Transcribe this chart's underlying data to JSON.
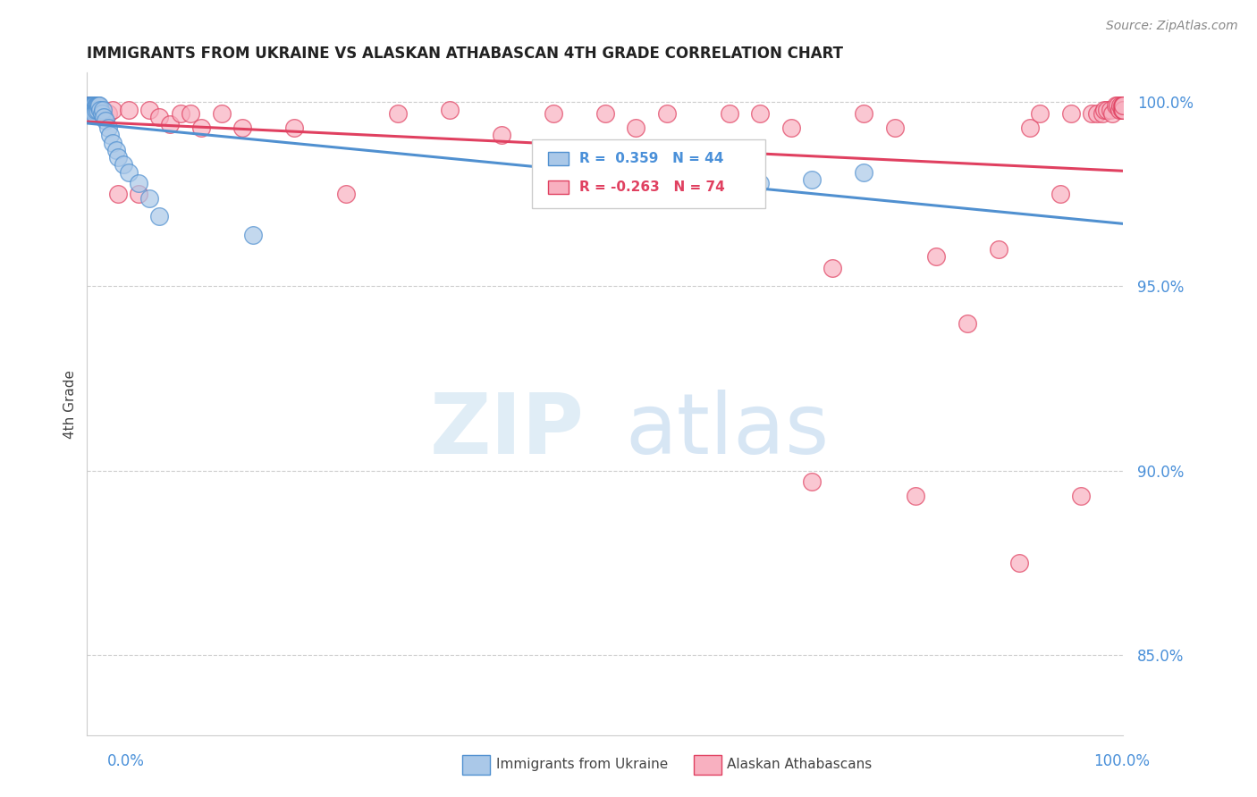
{
  "title": "IMMIGRANTS FROM UKRAINE VS ALASKAN ATHABASCAN 4TH GRADE CORRELATION CHART",
  "source": "Source: ZipAtlas.com",
  "ylabel": "4th Grade",
  "y_tick_labels": [
    "85.0%",
    "90.0%",
    "95.0%",
    "100.0%"
  ],
  "y_tick_values": [
    0.85,
    0.9,
    0.95,
    1.0
  ],
  "x_min": 0.0,
  "x_max": 1.0,
  "y_min": 0.828,
  "y_max": 1.008,
  "legend_label_blue": "Immigrants from Ukraine",
  "legend_label_pink": "Alaskan Athabascans",
  "watermark_zip": "ZIP",
  "watermark_atlas": "atlas",
  "blue_color": "#aac8e8",
  "blue_line_color": "#5090d0",
  "pink_color": "#f8b0c0",
  "pink_line_color": "#e04060",
  "blue_r": 0.359,
  "blue_n": 44,
  "pink_r": -0.263,
  "pink_n": 74,
  "blue_x": [
    0.001,
    0.001,
    0.002,
    0.002,
    0.003,
    0.003,
    0.003,
    0.004,
    0.004,
    0.004,
    0.005,
    0.005,
    0.006,
    0.006,
    0.007,
    0.007,
    0.007,
    0.008,
    0.008,
    0.009,
    0.01,
    0.01,
    0.011,
    0.012,
    0.013,
    0.014,
    0.015,
    0.016,
    0.018,
    0.02,
    0.022,
    0.025,
    0.028,
    0.03,
    0.035,
    0.04,
    0.05,
    0.06,
    0.07,
    0.16,
    0.63,
    0.65,
    0.7,
    0.75
  ],
  "blue_y": [
    0.999,
    0.998,
    0.999,
    0.998,
    0.999,
    0.998,
    0.997,
    0.999,
    0.998,
    0.997,
    0.999,
    0.998,
    0.999,
    0.998,
    0.999,
    0.998,
    0.997,
    0.999,
    0.998,
    0.999,
    0.999,
    0.998,
    0.999,
    0.999,
    0.998,
    0.997,
    0.998,
    0.996,
    0.995,
    0.993,
    0.991,
    0.989,
    0.987,
    0.985,
    0.983,
    0.981,
    0.978,
    0.974,
    0.969,
    0.964,
    0.976,
    0.978,
    0.979,
    0.981
  ],
  "pink_x": [
    0.001,
    0.001,
    0.002,
    0.002,
    0.003,
    0.003,
    0.004,
    0.004,
    0.005,
    0.006,
    0.007,
    0.008,
    0.01,
    0.012,
    0.015,
    0.02,
    0.025,
    0.03,
    0.04,
    0.05,
    0.06,
    0.07,
    0.08,
    0.09,
    0.1,
    0.11,
    0.13,
    0.15,
    0.2,
    0.25,
    0.3,
    0.35,
    0.4,
    0.45,
    0.5,
    0.53,
    0.56,
    0.62,
    0.65,
    0.68,
    0.7,
    0.72,
    0.75,
    0.78,
    0.8,
    0.82,
    0.85,
    0.88,
    0.9,
    0.91,
    0.92,
    0.94,
    0.95,
    0.96,
    0.97,
    0.975,
    0.98,
    0.982,
    0.985,
    0.988,
    0.99,
    0.993,
    0.995,
    0.997,
    0.998,
    0.999,
    0.999,
    1.0,
    1.0,
    1.0,
    1.0,
    1.0,
    1.0,
    1.0
  ],
  "pink_y": [
    0.999,
    0.998,
    0.999,
    0.998,
    0.999,
    0.998,
    0.999,
    0.998,
    0.999,
    0.998,
    0.999,
    0.998,
    0.999,
    0.998,
    0.998,
    0.997,
    0.998,
    0.975,
    0.998,
    0.975,
    0.998,
    0.996,
    0.994,
    0.997,
    0.997,
    0.993,
    0.997,
    0.993,
    0.993,
    0.975,
    0.997,
    0.998,
    0.991,
    0.997,
    0.997,
    0.993,
    0.997,
    0.997,
    0.997,
    0.993,
    0.897,
    0.955,
    0.997,
    0.993,
    0.893,
    0.958,
    0.94,
    0.96,
    0.875,
    0.993,
    0.997,
    0.975,
    0.997,
    0.893,
    0.997,
    0.997,
    0.997,
    0.998,
    0.998,
    0.998,
    0.997,
    0.999,
    0.999,
    0.998,
    0.999,
    0.999,
    0.998,
    0.999,
    0.998,
    0.999,
    0.998,
    0.999,
    0.998,
    0.999
  ]
}
